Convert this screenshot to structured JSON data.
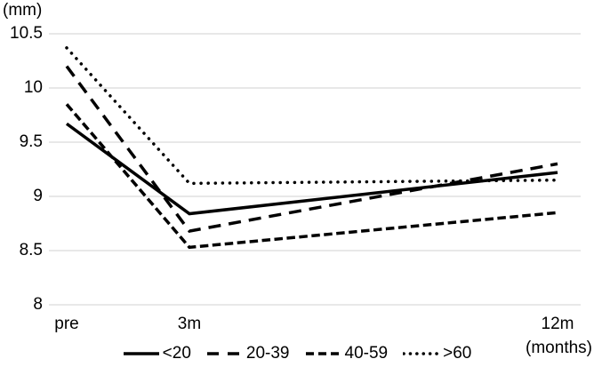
{
  "chart_data": {
    "type": "line",
    "title": "",
    "y_axis_title": "(mm)",
    "x_axis_unit": "(months)",
    "categories": [
      "pre",
      "3m",
      "12m"
    ],
    "x_months": [
      0,
      3,
      12
    ],
    "series": [
      {
        "name": "<20",
        "line_style": "solid",
        "values": [
          9.67,
          8.84,
          9.22
        ]
      },
      {
        "name": "20-39",
        "line_style": "long-dash",
        "values": [
          10.2,
          8.68,
          9.3
        ]
      },
      {
        "name": "40-59",
        "line_style": "dash",
        "values": [
          9.85,
          8.53,
          8.85
        ]
      },
      {
        "name": ">60",
        "line_style": "dot",
        "values": [
          10.37,
          9.12,
          9.15
        ]
      }
    ],
    "ylim": [
      8,
      10.5
    ],
    "yticks": [
      10.5,
      10,
      9.5,
      9,
      8.5,
      8
    ],
    "grid": true,
    "legend_position": "bottom",
    "colors": {
      "line": "#000000",
      "gridline": "#d9d9d9",
      "background": "#ffffff",
      "text": "#000000"
    }
  }
}
